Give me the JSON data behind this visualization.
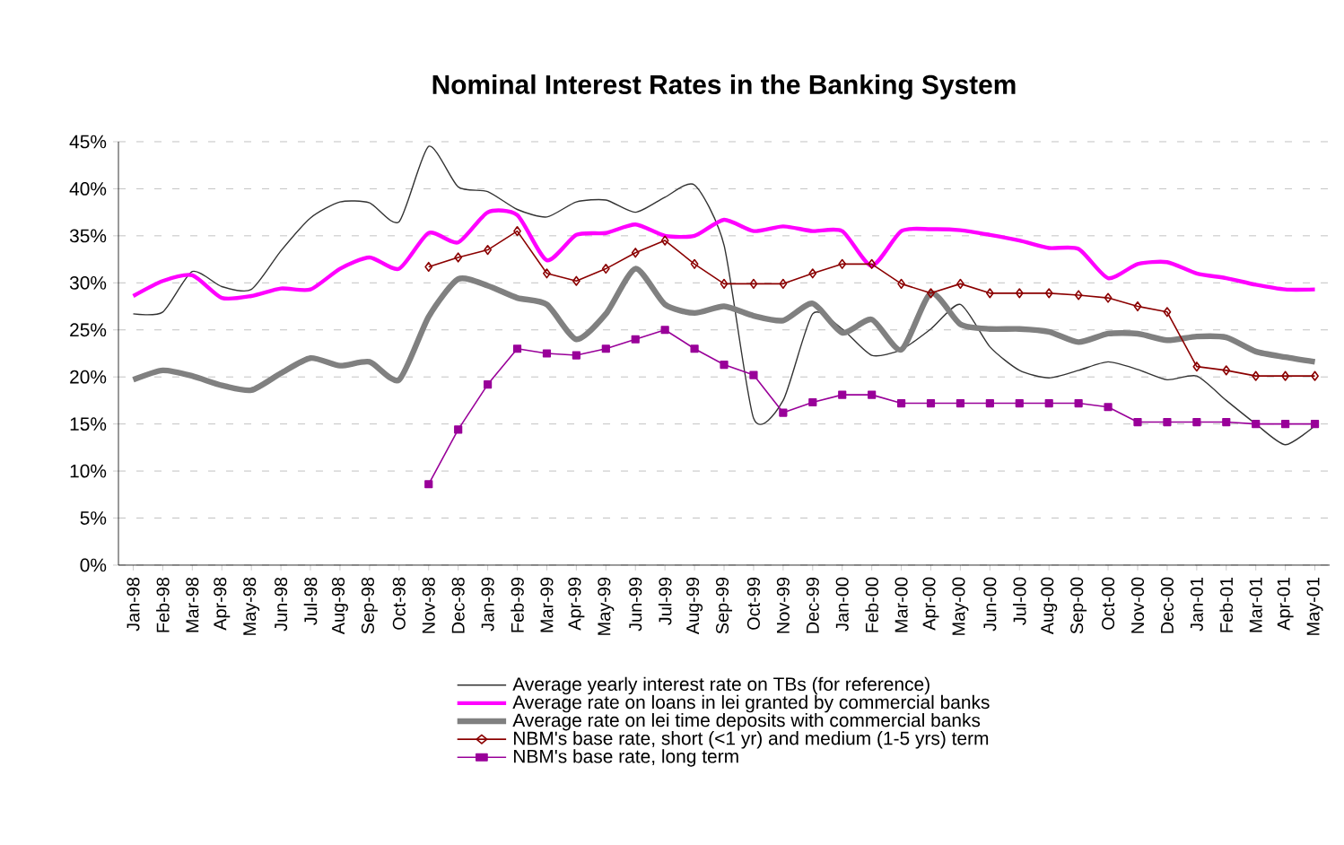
{
  "chart_data": {
    "type": "line",
    "title": "Nominal Interest Rates in the Banking System",
    "categories": [
      "Jan-98",
      "Feb-98",
      "Mar-98",
      "Apr-98",
      "May-98",
      "Jun-98",
      "Jul-98",
      "Aug-98",
      "Sep-98",
      "Oct-98",
      "Nov-98",
      "Dec-98",
      "Jan-99",
      "Feb-99",
      "Mar-99",
      "Apr-99",
      "May-99",
      "Jun-99",
      "Jul-99",
      "Aug-99",
      "Sep-99",
      "Oct-99",
      "Nov-99",
      "Dec-99",
      "Jan-00",
      "Feb-00",
      "Mar-00",
      "Apr-00",
      "May-00",
      "Jun-00",
      "Jul-00",
      "Aug-00",
      "Sep-00",
      "Oct-00",
      "Nov-00",
      "Dec-00",
      "Jan-01",
      "Feb-01",
      "Mar-01",
      "Apr-01",
      "May-01"
    ],
    "series": [
      {
        "name": "Average yearly interest rate on TBs (for reference)",
        "color": "#333333",
        "marker": "none",
        "values": [
          26.7,
          26.9,
          31.2,
          29.6,
          29.3,
          33.4,
          36.9,
          38.6,
          38.5,
          36.5,
          44.5,
          40.2,
          39.7,
          37.8,
          37.0,
          38.6,
          38.8,
          37.5,
          39.1,
          40.4,
          34.0,
          15.6,
          17.5,
          26.7,
          25.1,
          22.3,
          22.9,
          25.1,
          27.7,
          23.2,
          20.7,
          19.9,
          20.7,
          21.6,
          20.8,
          19.7,
          20.1,
          17.5,
          15.0,
          12.8,
          14.8
        ]
      },
      {
        "name": "Average rate on loans in lei granted by commercial banks",
        "color": "#ff00ff",
        "marker": "none",
        "values": [
          28.6,
          30.2,
          30.8,
          28.4,
          28.6,
          29.4,
          29.3,
          31.5,
          32.7,
          31.5,
          35.3,
          34.3,
          37.5,
          37.2,
          32.4,
          35.1,
          35.3,
          36.2,
          35.0,
          35.0,
          36.7,
          35.5,
          36.0,
          35.5,
          35.5,
          31.8,
          35.5,
          35.7,
          35.6,
          35.1,
          34.5,
          33.7,
          33.6,
          30.5,
          32.0,
          32.2,
          31.0,
          30.5,
          29.8,
          29.3,
          29.3
        ]
      },
      {
        "name": "Average rate on lei time deposits with commercial banks",
        "color": "#808080",
        "marker": "none",
        "values": [
          19.7,
          20.7,
          20.1,
          19.1,
          18.6,
          20.4,
          22.0,
          21.2,
          21.6,
          19.7,
          26.4,
          30.4,
          29.7,
          28.4,
          27.7,
          24.0,
          26.7,
          31.5,
          27.7,
          26.8,
          27.5,
          26.5,
          26.0,
          27.8,
          24.7,
          26.1,
          22.9,
          28.9,
          25.6,
          25.1,
          25.1,
          24.8,
          23.7,
          24.6,
          24.6,
          23.9,
          24.3,
          24.2,
          22.7,
          22.1,
          21.6
        ]
      },
      {
        "name": "NBM's base rate, short (<1 yr) and medium (1-5 yrs) term",
        "color": "#8b0000",
        "marker": "diamond",
        "values": [
          null,
          null,
          null,
          null,
          null,
          null,
          null,
          null,
          null,
          null,
          31.7,
          32.7,
          33.5,
          35.5,
          31.0,
          30.2,
          31.5,
          33.2,
          34.5,
          32.0,
          29.9,
          29.9,
          29.9,
          31.0,
          32.0,
          32.0,
          29.9,
          28.9,
          29.9,
          28.9,
          28.9,
          28.9,
          28.7,
          28.4,
          27.5,
          26.9,
          21.1,
          20.7,
          20.1,
          20.1,
          20.1
        ]
      },
      {
        "name": "NBM's base rate, long term",
        "color": "#990099",
        "marker": "square",
        "values": [
          null,
          null,
          null,
          null,
          null,
          null,
          null,
          null,
          null,
          null,
          8.6,
          14.4,
          19.2,
          23.0,
          22.5,
          22.3,
          23.0,
          24.0,
          25.0,
          23.0,
          21.3,
          20.2,
          16.2,
          17.3,
          18.1,
          18.1,
          17.2,
          17.2,
          17.2,
          17.2,
          17.2,
          17.2,
          17.2,
          16.8,
          15.2,
          15.2,
          15.2,
          15.2,
          15.0,
          15.0,
          15.0
        ]
      }
    ],
    "ylim": [
      0,
      45
    ],
    "yticks": [
      {
        "value": 0,
        "label": "0%"
      },
      {
        "value": 5,
        "label": "5%"
      },
      {
        "value": 10,
        "label": "10%"
      },
      {
        "value": 15,
        "label": "15%"
      },
      {
        "value": 20,
        "label": "20%"
      },
      {
        "value": 25,
        "label": "25%"
      },
      {
        "value": 30,
        "label": "30%"
      },
      {
        "value": 35,
        "label": "35%"
      },
      {
        "value": 40,
        "label": "40%"
      },
      {
        "value": 45,
        "label": "45%"
      }
    ],
    "grid": "y",
    "legend": "bottom"
  }
}
